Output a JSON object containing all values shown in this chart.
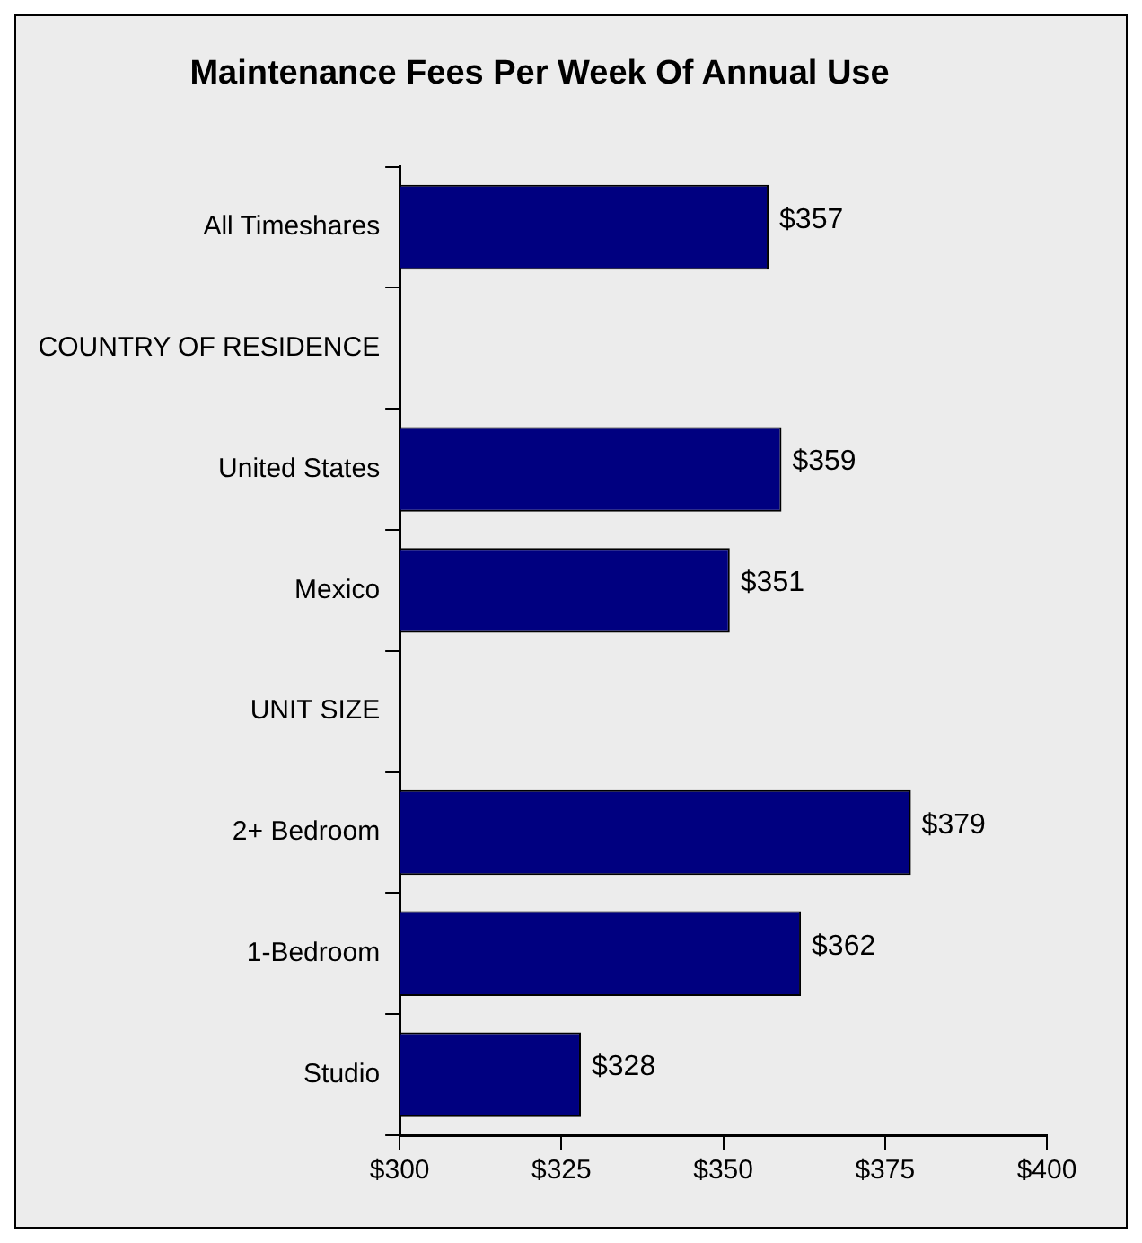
{
  "chart_data": {
    "type": "bar",
    "orientation": "horizontal",
    "title": "Maintenance Fees Per Week Of Annual Use",
    "categories": [
      "All Timeshares",
      "COUNTRY OF RESIDENCE",
      "United States",
      "Mexico",
      "UNIT SIZE",
      "2+ Bedroom",
      "1-Bedroom",
      "Studio"
    ],
    "values": [
      357,
      null,
      359,
      351,
      null,
      379,
      362,
      328
    ],
    "value_labels": [
      "$357",
      null,
      "$359",
      "$351",
      null,
      "$379",
      "$362",
      "$328"
    ],
    "color": "#000080",
    "xlim": [
      300,
      400
    ],
    "xticks": [
      {
        "value": 300,
        "label": "$300"
      },
      {
        "value": 325,
        "label": "$325"
      },
      {
        "value": 350,
        "label": "$350"
      },
      {
        "value": 375,
        "label": "$375"
      },
      {
        "value": 400,
        "label": "$400"
      }
    ],
    "grid": false,
    "legend": false
  }
}
